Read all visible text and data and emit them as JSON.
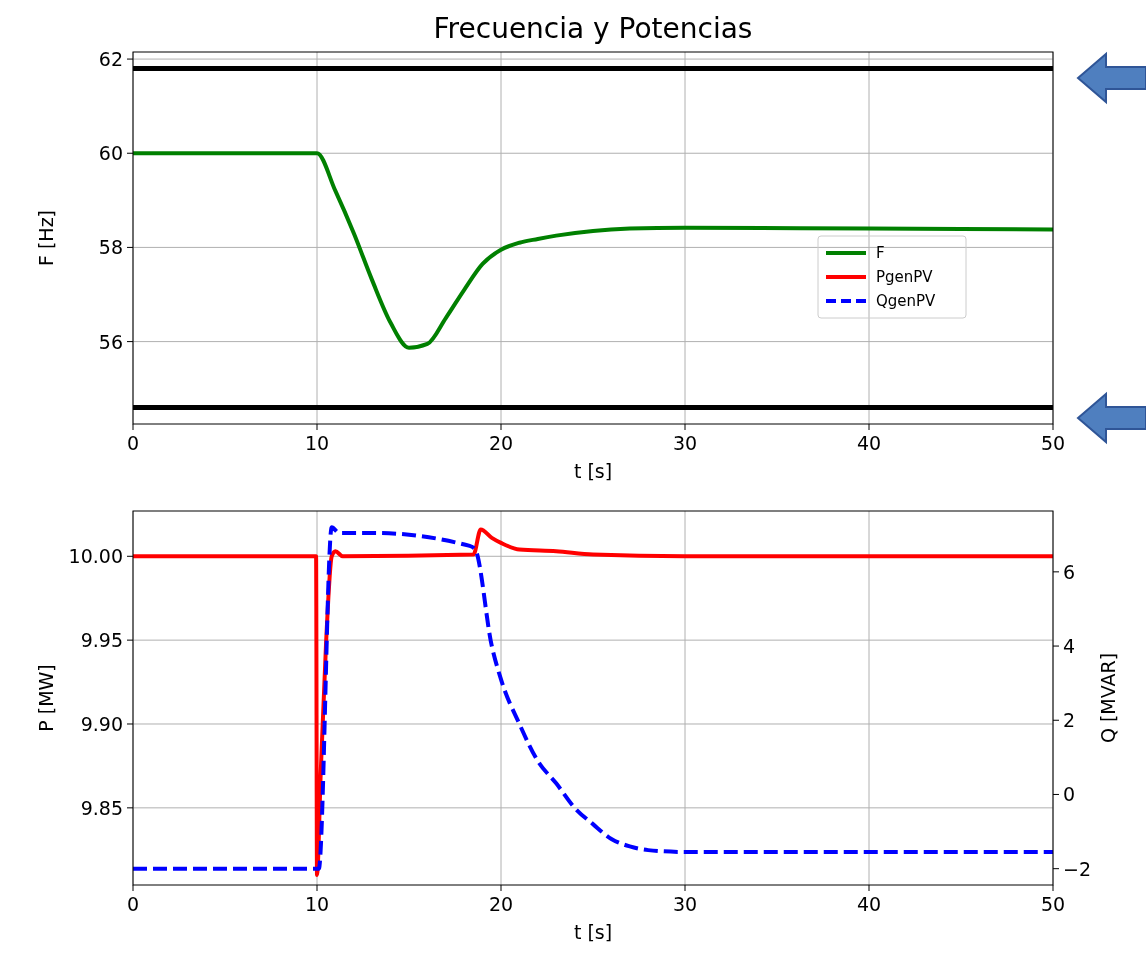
{
  "chart_data": [
    {
      "type": "line",
      "title": "Frecuencia y Potencias",
      "xlabel": "t [s]",
      "ylabel": "F [Hz]",
      "xlim": [
        0,
        50
      ],
      "xticks": [
        0,
        10,
        20,
        30,
        40,
        50
      ],
      "ylim": [
        54.25,
        62.15
      ],
      "yticks": [
        56,
        58,
        60,
        62
      ],
      "grid": true,
      "legend": "right",
      "ref_lines": [
        {
          "axis": "y",
          "value": 61.8,
          "color": "#000000"
        },
        {
          "axis": "y",
          "value": 54.6,
          "color": "#000000"
        }
      ],
      "series": [
        {
          "name": "F",
          "color": "#008000",
          "x": [
            0,
            10,
            11,
            12,
            13,
            14,
            15,
            16,
            17,
            18,
            19,
            20,
            21,
            22,
            23,
            25,
            27,
            30,
            40,
            50
          ],
          "values": [
            60,
            60,
            59.2,
            58.3,
            57.3,
            56.4,
            55.87,
            55.95,
            56.5,
            57.1,
            57.65,
            57.95,
            58.1,
            58.18,
            58.25,
            58.35,
            58.4,
            58.42,
            58.4,
            58.38
          ]
        }
      ]
    },
    {
      "type": "line",
      "xlabel": "t [s]",
      "ylabel": "P [MW]",
      "y2label": "Q [MVAR]",
      "xlim": [
        0,
        50
      ],
      "xticks": [
        0,
        10,
        20,
        30,
        40,
        50
      ],
      "ylim": [
        9.804,
        10.027
      ],
      "yticks": [
        {
          "value": 9.85,
          "label": "9.85"
        },
        {
          "value": 9.9,
          "label": "9.90"
        },
        {
          "value": 9.95,
          "label": "9.95"
        },
        {
          "value": 10,
          "label": "10.00"
        }
      ],
      "y2lim": [
        -2.44,
        7.64
      ],
      "y2ticks": [
        {
          "value": -2,
          "label": "−2"
        },
        0,
        2,
        4,
        6
      ],
      "grid": true,
      "series": [
        {
          "name": "PgenPV",
          "color": "#ff0000",
          "x": [
            0,
            9.95,
            10,
            10.2,
            10.5,
            10.8,
            11,
            11.4,
            18.5,
            18.9,
            19.5,
            20,
            21,
            23,
            25,
            30,
            50
          ],
          "values": [
            10,
            10,
            9.81,
            9.87,
            9.95,
            10,
            10.003,
            10,
            10.001,
            10.016,
            10.011,
            10.008,
            10.004,
            10.003,
            10.001,
            10,
            10
          ]
        },
        {
          "name": "QgenPV",
          "color": "#0000ff",
          "axis": "y2",
          "line_style": "dashed",
          "x": [
            0,
            10,
            10.1,
            10.8,
            11.2,
            13,
            18.3,
            18.6,
            19.5,
            20,
            21,
            22,
            23,
            24,
            25,
            26,
            27,
            28,
            30,
            50
          ],
          "values": [
            -2,
            -2,
            -2,
            7.2,
            7.05,
            7.05,
            6.7,
            6.6,
            4.0,
            3.1,
            1.9,
            0.9,
            0.3,
            -0.36,
            -0.8,
            -1.2,
            -1.4,
            -1.5,
            -1.55,
            -1.55
          ]
        }
      ]
    }
  ]
}
